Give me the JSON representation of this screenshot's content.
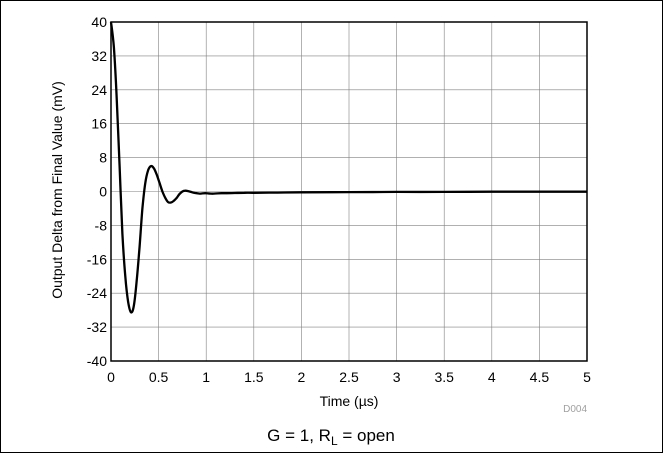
{
  "chart_data": {
    "type": "line",
    "title": "",
    "caption": {
      "prefix": "G = 1, R",
      "sub": "L",
      "suffix": " = open"
    },
    "xlabel": "Time (µs)",
    "ylabel": "Output Delta from Final Value (mV)",
    "figure_code": "D004",
    "xlim": [
      0,
      5
    ],
    "ylim": [
      -40,
      40
    ],
    "xticks": [
      0,
      0.5,
      1,
      1.5,
      2,
      2.5,
      3,
      3.5,
      4,
      4.5,
      5
    ],
    "xtick_labels": [
      "0",
      "0.5",
      "1",
      "1.5",
      "2",
      "2.5",
      "3",
      "3.5",
      "4",
      "4.5",
      "5"
    ],
    "yticks": [
      40,
      32,
      24,
      16,
      8,
      0,
      -8,
      -16,
      -24,
      -32,
      -40
    ],
    "ytick_labels": [
      "40",
      "32",
      "24",
      "16",
      "8",
      "0",
      "-8",
      "-16",
      "-24",
      "-32",
      "-40"
    ],
    "grid": true,
    "series": [
      {
        "color": "#000000",
        "x": [
          0,
          0.03,
          0.06,
          0.09,
          0.12,
          0.15,
          0.18,
          0.21,
          0.24,
          0.27,
          0.3,
          0.33,
          0.36,
          0.39,
          0.42,
          0.45,
          0.48,
          0.51,
          0.54,
          0.57,
          0.6,
          0.63,
          0.66,
          0.69,
          0.72,
          0.75,
          0.78,
          0.81,
          0.84,
          0.87,
          0.9,
          0.93,
          0.96,
          0.99,
          1.02,
          1.05,
          1.08,
          1.12,
          1.16,
          1.2,
          1.3,
          1.4,
          1.5,
          1.75,
          2.0,
          2.5,
          3.0,
          3.5,
          4.0,
          4.5,
          5.0
        ],
        "y": [
          40,
          34,
          22,
          6,
          -10,
          -20,
          -26,
          -28.5,
          -27,
          -21,
          -13,
          -4,
          2,
          5,
          6,
          5.5,
          4,
          2,
          0,
          -1.5,
          -2.5,
          -2.6,
          -2.2,
          -1.5,
          -0.6,
          0,
          0.2,
          0.1,
          -0.1,
          -0.3,
          -0.4,
          -0.5,
          -0.45,
          -0.4,
          -0.45,
          -0.5,
          -0.5,
          -0.45,
          -0.4,
          -0.4,
          -0.35,
          -0.3,
          -0.3,
          -0.25,
          -0.2,
          -0.15,
          -0.1,
          -0.1,
          -0.05,
          -0.05,
          -0.05
        ]
      }
    ]
  }
}
